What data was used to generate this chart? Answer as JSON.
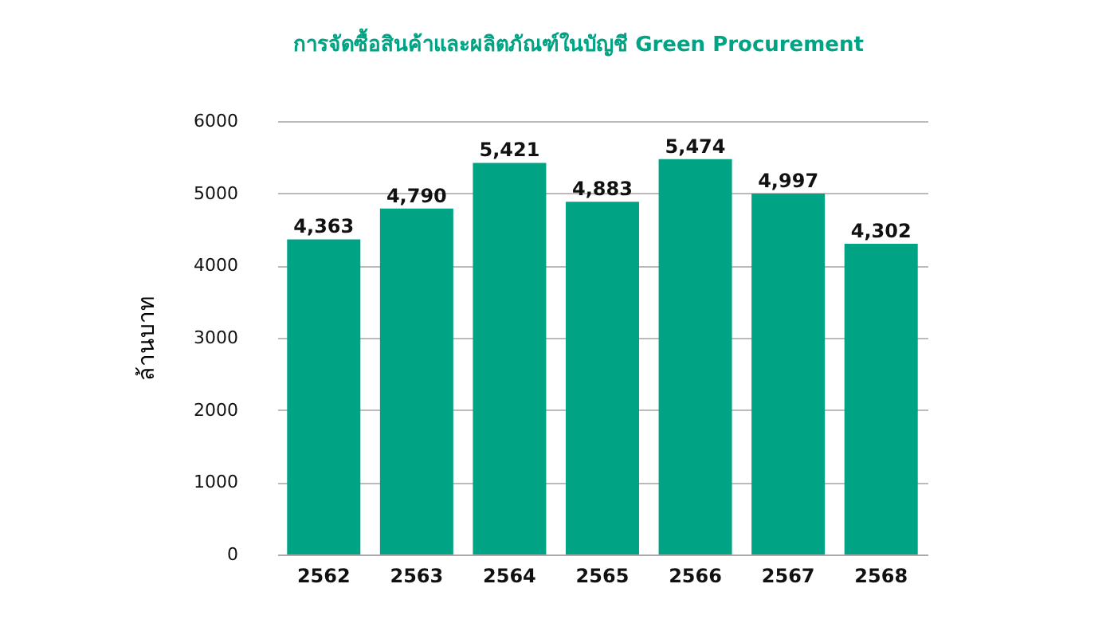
{
  "chart_data": {
    "type": "bar",
    "title": "การจัดซื้อสินค้าและผลิตภัณฑ์ในบัญชี Green Procurement",
    "ylabel": "ล้านบาท",
    "categories": [
      "2562",
      "2563",
      "2564",
      "2565",
      "2566",
      "2567",
      "2568"
    ],
    "values": [
      4363,
      4790,
      5421,
      4883,
      5474,
      4997,
      4302
    ],
    "value_labels": [
      "4,363",
      "4,790",
      "5,421",
      "4,883",
      "5,474",
      "4,997",
      "4,302"
    ],
    "color": "#00a383",
    "ylim": [
      0,
      6000
    ],
    "yticks": [
      0,
      1000,
      2000,
      3000,
      4000,
      5000,
      6000
    ],
    "grid": "y"
  }
}
